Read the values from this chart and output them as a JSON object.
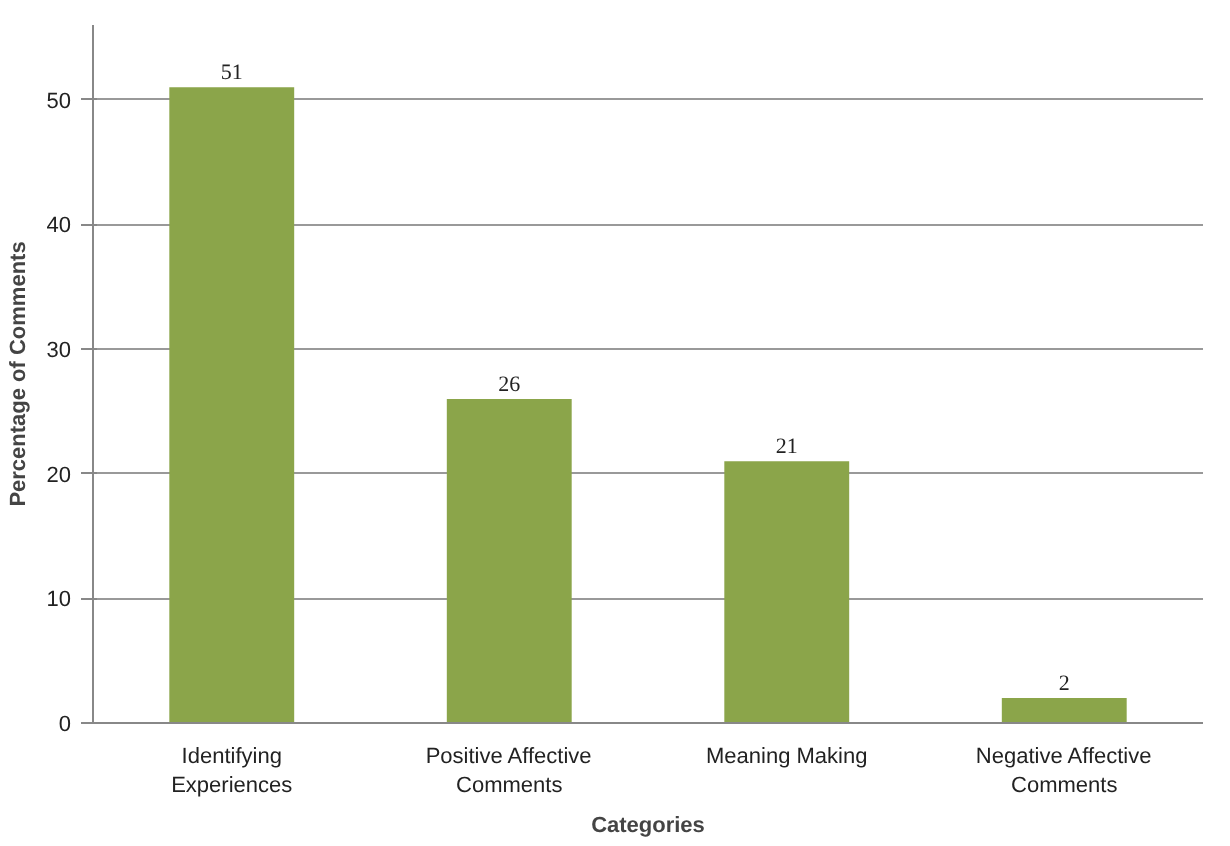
{
  "chart_data": {
    "type": "bar",
    "xlabel": "Categories",
    "ylabel": "Percentage of Comments",
    "categories": [
      "Identifying Experiences",
      "Positive Affective Comments",
      "Meaning Making",
      "Negative Affective Comments"
    ],
    "values": [
      51,
      26,
      21,
      2
    ],
    "color": "#8ba54a",
    "ylim": [
      0,
      56
    ],
    "yticks": [
      0,
      10,
      20,
      30,
      40,
      50
    ],
    "grid": "y",
    "data_labels": true
  }
}
